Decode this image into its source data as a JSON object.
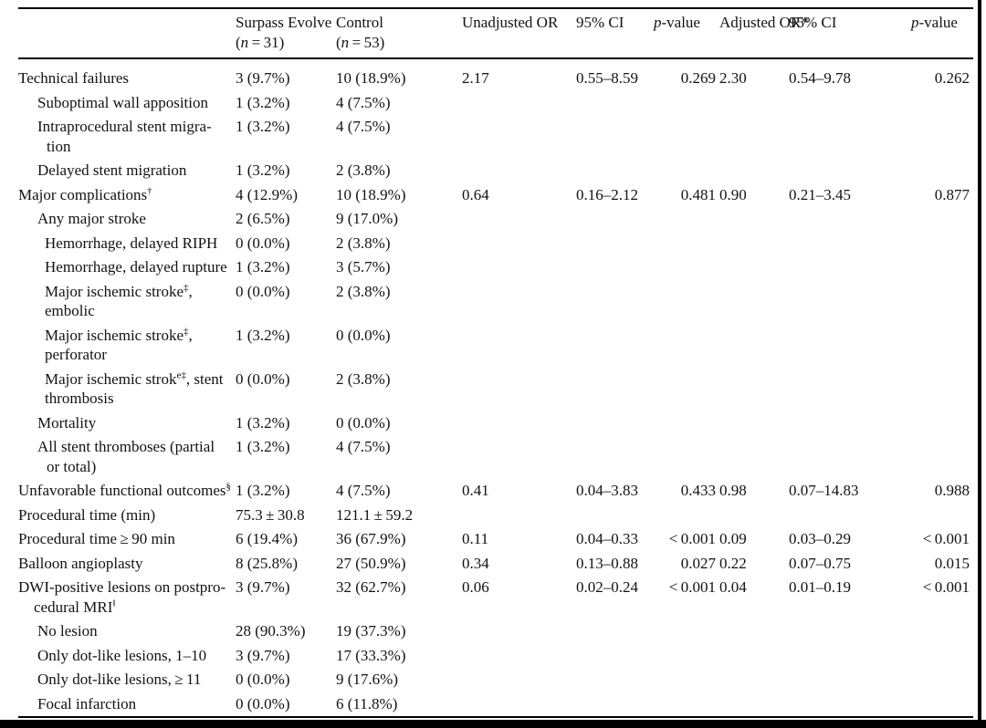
{
  "frame": {
    "bottom_bar_color": "#000000",
    "right_line_color": "#000000",
    "rule_color": "#000000"
  },
  "table": {
    "headers": [
      {
        "lines": [
          [
            {
              "t": ""
            }
          ]
        ]
      },
      {
        "lines": [
          [
            {
              "t": "Surpass Evolve"
            }
          ],
          [
            {
              "t": "("
            },
            {
              "i": "n"
            },
            {
              "t": " = 31)"
            }
          ]
        ]
      },
      {
        "lines": [
          [
            {
              "t": "Control"
            }
          ],
          [
            {
              "t": "("
            },
            {
              "i": "n"
            },
            {
              "t": " = 53)"
            }
          ]
        ]
      },
      {
        "lines": [
          [
            {
              "t": "Unadjusted OR"
            }
          ]
        ]
      },
      {
        "lines": [
          [
            {
              "t": "95% CI"
            }
          ]
        ]
      },
      {
        "lines": [
          [
            {
              "i": "p"
            },
            {
              "t": "-value"
            }
          ]
        ]
      },
      {
        "lines": [
          [
            {
              "t": "Adjusted OR*"
            }
          ]
        ]
      },
      {
        "lines": [
          [
            {
              "t": "95% CI"
            }
          ]
        ]
      },
      {
        "lines": [
          [
            {
              "i": "p"
            },
            {
              "t": "-value"
            }
          ]
        ]
      }
    ],
    "rows": [
      {
        "indent": 0,
        "label": [
          [
            {
              "t": "Technical failures"
            }
          ]
        ],
        "cells": [
          "3 (9.7%)",
          "10 (18.9%)",
          "2.17",
          "0.55–8.59",
          "0.269",
          "2.30",
          "0.54–9.78",
          "0.262"
        ]
      },
      {
        "indent": 1,
        "label": [
          [
            {
              "t": "Suboptimal wall apposition"
            }
          ]
        ],
        "cells": [
          "1 (3.2%)",
          "4 (7.5%)",
          "",
          "",
          "",
          "",
          "",
          ""
        ]
      },
      {
        "indent": 1,
        "label": [
          [
            {
              "t": "Intraprocedural stent migra-"
            }
          ],
          [
            {
              "t": "tion"
            }
          ]
        ],
        "cells": [
          "1 (3.2%)",
          "4 (7.5%)",
          "",
          "",
          "",
          "",
          "",
          ""
        ]
      },
      {
        "indent": 1,
        "label": [
          [
            {
              "t": "Delayed stent migration"
            }
          ]
        ],
        "cells": [
          "1 (3.2%)",
          "2 (3.8%)",
          "",
          "",
          "",
          "",
          "",
          ""
        ]
      },
      {
        "indent": 0,
        "label": [
          [
            {
              "t": "Major complications"
            },
            {
              "s": "†"
            }
          ]
        ],
        "cells": [
          "4 (12.9%)",
          "10 (18.9%)",
          "0.64",
          "0.16–2.12",
          "0.481",
          "0.90",
          "0.21–3.45",
          "0.877"
        ]
      },
      {
        "indent": 1,
        "label": [
          [
            {
              "t": "Any major stroke"
            }
          ]
        ],
        "cells": [
          "2 (6.5%)",
          "9 (17.0%)",
          "",
          "",
          "",
          "",
          "",
          ""
        ]
      },
      {
        "indent": 2,
        "label": [
          [
            {
              "t": "Hemorrhage, delayed RIPH"
            }
          ]
        ],
        "cells": [
          "0 (0.0%)",
          "2 (3.8%)",
          "",
          "",
          "",
          "",
          "",
          ""
        ]
      },
      {
        "indent": 2,
        "label": [
          [
            {
              "t": "Hemorrhage, delayed rupture"
            }
          ]
        ],
        "cells": [
          "1 (3.2%)",
          "3 (5.7%)",
          "",
          "",
          "",
          "",
          "",
          ""
        ]
      },
      {
        "indent": 2,
        "label": [
          [
            {
              "t": "Major ischemic stroke"
            },
            {
              "s": "‡"
            },
            {
              "t": ","
            }
          ],
          [
            {
              "t": "embolic"
            }
          ]
        ],
        "cells": [
          "0 (0.0%)",
          "2 (3.8%)",
          "",
          "",
          "",
          "",
          "",
          ""
        ]
      },
      {
        "indent": 2,
        "label": [
          [
            {
              "t": "Major ischemic stroke"
            },
            {
              "s": "‡"
            },
            {
              "t": ","
            }
          ],
          [
            {
              "t": "perforator"
            }
          ]
        ],
        "cells": [
          "1 (3.2%)",
          "0 (0.0%)",
          "",
          "",
          "",
          "",
          "",
          ""
        ]
      },
      {
        "indent": 2,
        "label": [
          [
            {
              "t": "Major ischemic strok"
            },
            {
              "s": "e‡"
            },
            {
              "t": ", stent"
            }
          ],
          [
            {
              "t": "thrombosis"
            }
          ]
        ],
        "cells": [
          "0 (0.0%)",
          "2 (3.8%)",
          "",
          "",
          "",
          "",
          "",
          ""
        ]
      },
      {
        "indent": 1,
        "label": [
          [
            {
              "t": "Mortality"
            }
          ]
        ],
        "cells": [
          "1 (3.2%)",
          "0 (0.0%)",
          "",
          "",
          "",
          "",
          "",
          ""
        ]
      },
      {
        "indent": 1,
        "label": [
          [
            {
              "t": "All stent thromboses (partial"
            }
          ],
          [
            {
              "t": "or total)"
            }
          ]
        ],
        "cells": [
          "1 (3.2%)",
          "4 (7.5%)",
          "",
          "",
          "",
          "",
          "",
          ""
        ]
      },
      {
        "indent": 0,
        "label": [
          [
            {
              "t": "Unfavorable functional outcomes"
            },
            {
              "s": "§"
            }
          ]
        ],
        "cells": [
          "1 (3.2%)",
          "4 (7.5%)",
          "0.41",
          "0.04–3.83",
          "0.433",
          "0.98",
          "0.07–14.83",
          "0.988"
        ]
      },
      {
        "indent": 0,
        "label": [
          [
            {
              "t": "Procedural time (min)"
            }
          ]
        ],
        "cells": [
          "75.3 ± 30.8",
          "121.1 ± 59.2",
          "",
          "",
          "",
          "",
          "",
          ""
        ]
      },
      {
        "indent": 0,
        "label": [
          [
            {
              "t": "Procedural time ≥ 90 min"
            }
          ]
        ],
        "cells": [
          "6 (19.4%)",
          "36 (67.9%)",
          "0.11",
          "0.04–0.33",
          "< 0.001",
          "0.09",
          "0.03–0.29",
          "< 0.001"
        ]
      },
      {
        "indent": 0,
        "label": [
          [
            {
              "t": "Balloon angioplasty"
            }
          ]
        ],
        "cells": [
          "8 (25.8%)",
          "27 (50.9%)",
          "0.34",
          "0.13–0.88",
          "0.027",
          "0.22",
          "0.07–0.75",
          "0.015"
        ]
      },
      {
        "indent": 0,
        "label": [
          [
            {
              "t": "DWI-positive lesions on postpro-"
            }
          ],
          [
            {
              "t": "cedural MRI"
            },
            {
              "s": "‖"
            }
          ]
        ],
        "cells": [
          "3 (9.7%)",
          "32 (62.7%)",
          "0.06",
          "0.02–0.24",
          "< 0.001",
          "0.04",
          "0.01–0.19",
          "< 0.001"
        ]
      },
      {
        "indent": 1,
        "label": [
          [
            {
              "t": "No lesion"
            }
          ]
        ],
        "cells": [
          "28 (90.3%)",
          "19 (37.3%)",
          "",
          "",
          "",
          "",
          "",
          ""
        ]
      },
      {
        "indent": 1,
        "label": [
          [
            {
              "t": "Only dot-like lesions, 1–10"
            }
          ]
        ],
        "cells": [
          "3 (9.7%)",
          "17 (33.3%)",
          "",
          "",
          "",
          "",
          "",
          ""
        ]
      },
      {
        "indent": 1,
        "label": [
          [
            {
              "t": "Only dot-like lesions, ≥ 11"
            }
          ]
        ],
        "cells": [
          "0 (0.0%)",
          "9 (17.6%)",
          "",
          "",
          "",
          "",
          "",
          ""
        ]
      },
      {
        "indent": 1,
        "label": [
          [
            {
              "t": "Focal infarction"
            }
          ]
        ],
        "cells": [
          "0 (0.0%)",
          "6 (11.8%)",
          "",
          "",
          "",
          "",
          "",
          ""
        ]
      }
    ]
  }
}
